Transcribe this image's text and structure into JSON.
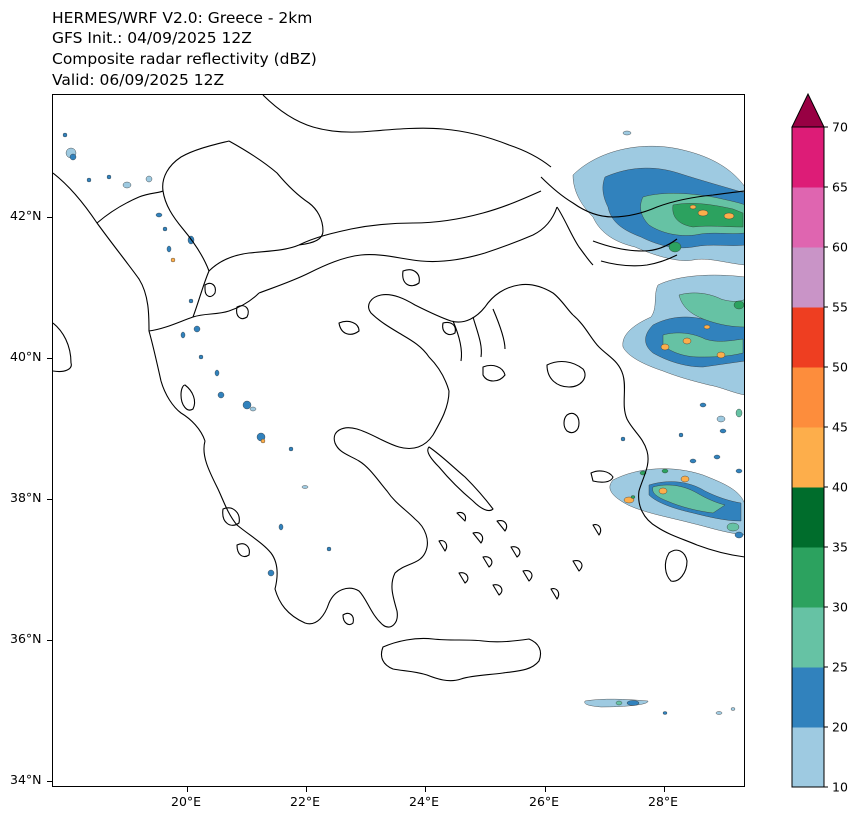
{
  "title": {
    "line1": "HERMES/WRF V2.0: Greece - 2km",
    "line2": "GFS Init.: 04/09/2025 12Z",
    "line3": "Composite radar reflectivity (dBZ)",
    "line4": "Valid: 06/09/2025 12Z"
  },
  "map": {
    "lon_range": [
      17.8,
      29.4
    ],
    "lat_range": [
      34.0,
      43.8
    ],
    "lon_ticks": [
      "20°E",
      "22°E",
      "24°E",
      "26°E",
      "28°E"
    ],
    "lat_ticks": [
      "34°N",
      "36°N",
      "38°N",
      "40°N",
      "42°N"
    ]
  },
  "colorbar": {
    "levels": [
      "10",
      "20",
      "25",
      "30",
      "35",
      "40",
      "45",
      "50",
      "55",
      "60",
      "65",
      "70",
      "75"
    ],
    "colors": [
      "#9ecae1",
      "#3182bd",
      "#66c2a4",
      "#2ca25f",
      "#006d2c",
      "#fdae4b",
      "#fd8d3c",
      "#ee3e21",
      "#c994c7",
      "#df65b0",
      "#dd1c77"
    ],
    "extend_color": "#980043"
  },
  "palette": {
    "coast": "#000000",
    "echo_light": "#9ecae1",
    "echo_medium": "#3182bd",
    "echo_green_light": "#66c2a4",
    "echo_green": "#2ca25f",
    "echo_orange": "#fdae4b"
  }
}
